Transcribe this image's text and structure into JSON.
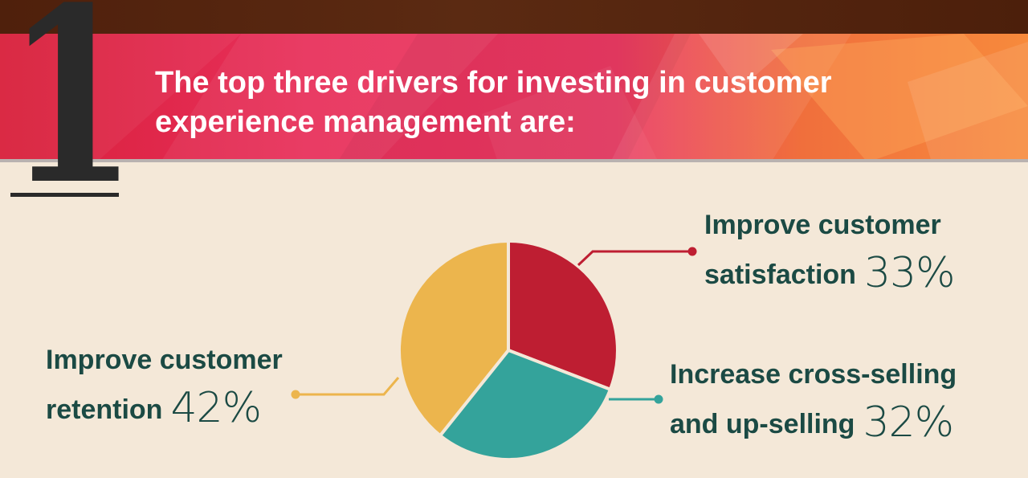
{
  "infographic": {
    "number": "1",
    "headline_line1": "The top three drivers for investing in customer",
    "headline_line2": "experience management are:"
  },
  "labels": {
    "satisfaction": {
      "line1": "Improve customer",
      "line2": "satisfaction",
      "pct": "33%"
    },
    "cross_selling": {
      "line1": "Increase cross-selling",
      "line2": "and up-selling",
      "pct": "32%"
    },
    "retention": {
      "line1": "Improve customer",
      "line2": "retention",
      "pct": "42%"
    }
  },
  "chart_data": {
    "type": "pie",
    "categories": [
      "Improve customer satisfaction",
      "Increase cross-selling and up-selling",
      "Improve customer retention"
    ],
    "values": [
      33,
      32,
      42
    ],
    "unit": "%",
    "colors": [
      "#be1e32",
      "#34a39b",
      "#ecb54d"
    ]
  },
  "colors": {
    "label_text": "#1b4a44",
    "banner_red": "#e8305b",
    "banner_orange": "#f78a3c",
    "background": "#f4e8d8",
    "dark_strip": "#4f200c"
  }
}
